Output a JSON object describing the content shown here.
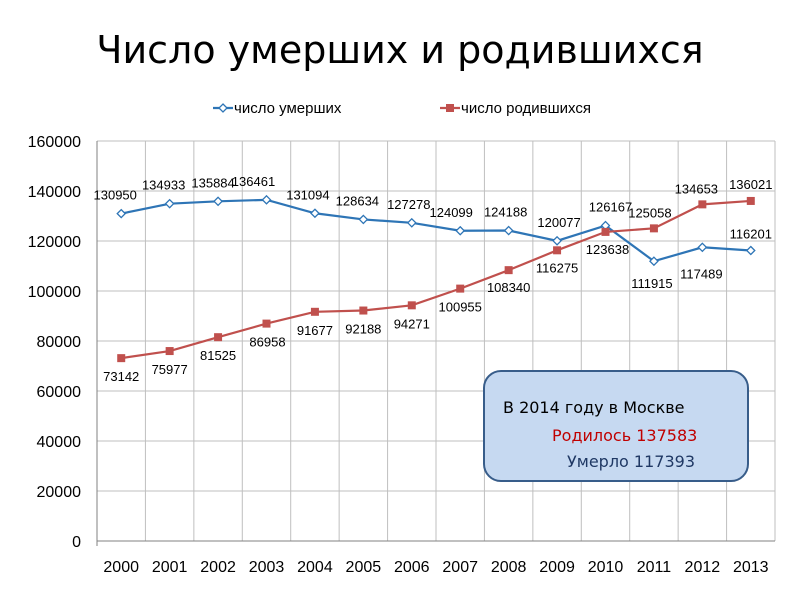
{
  "title": "Число умерших и родившихся",
  "colors": {
    "deaths": "#2e75b6",
    "births": "#c0504d",
    "grid": "#bfbfbf",
    "callout_bg": "#c6d9f1",
    "callout_border": "#385d8a"
  },
  "chart_data": {
    "type": "line",
    "title": "Число умерших и родившихся",
    "xlabel": "",
    "ylabel": "",
    "ylim": [
      0,
      160000
    ],
    "yticks": [
      "0",
      "20000",
      "40000",
      "60000",
      "80000",
      "100000",
      "120000",
      "140000",
      "160000"
    ],
    "categories": [
      "2000",
      "2001",
      "2002",
      "2003",
      "2004",
      "2005",
      "2006",
      "2007",
      "2008",
      "2009",
      "2010",
      "2011",
      "2012",
      "2013"
    ],
    "grid": true,
    "legend_position": "top",
    "series": [
      {
        "name": "число умерших",
        "marker": "diamond",
        "color": "#2e75b6",
        "values": [
          130950,
          134933,
          135884,
          136461,
          131094,
          128634,
          127278,
          124099,
          124188,
          120077,
          126167,
          111915,
          117489,
          116201
        ]
      },
      {
        "name": "число родившихся",
        "marker": "square",
        "color": "#c0504d",
        "values": [
          73142,
          75977,
          81525,
          86958,
          91677,
          92188,
          94271,
          100955,
          108340,
          116275,
          123638,
          125058,
          134653,
          136021
        ]
      }
    ]
  },
  "callout": {
    "line1": "В 2014 году в Москве",
    "line2": "Родилось 137583",
    "line3": "Умерло 117393"
  }
}
